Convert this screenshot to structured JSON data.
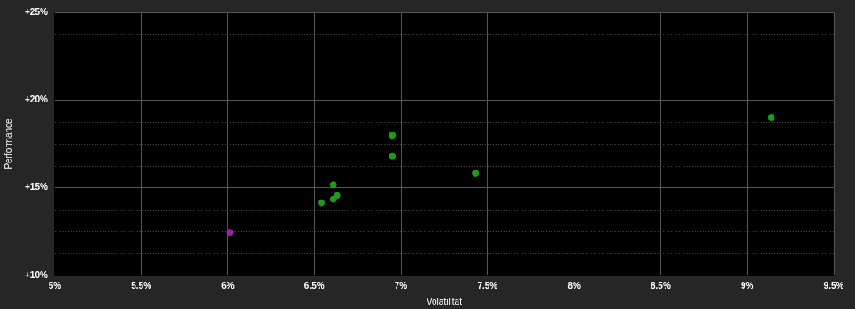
{
  "chart_data": {
    "type": "scatter",
    "x_label": "Volatilität",
    "y_label": "Performance",
    "x": [
      6.01,
      6.54,
      6.61,
      6.63,
      6.61,
      6.95,
      6.95,
      7.43,
      9.14
    ],
    "values": [
      12.46,
      14.15,
      14.35,
      14.56,
      15.17,
      16.81,
      17.99,
      15.84,
      19.01
    ],
    "colors": [
      "#a020a0",
      "#1f9a1f",
      "#1f9a1f",
      "#1f9a1f",
      "#1f9a1f",
      "#1f9a1f",
      "#1f9a1f",
      "#1f9a1f",
      "#1f9a1f"
    ],
    "marker": "circle",
    "xlim": [
      5,
      9.5
    ],
    "xticks": [
      {
        "value": 5,
        "label": "5%"
      },
      {
        "value": 5.5,
        "label": "5.5%"
      },
      {
        "value": 6,
        "label": "6%"
      },
      {
        "value": 6.5,
        "label": "6.5%"
      },
      {
        "value": 7,
        "label": "7%"
      },
      {
        "value": 7.5,
        "label": "7.5%"
      },
      {
        "value": 8,
        "label": "8%"
      },
      {
        "value": 8.5,
        "label": "8.5%"
      },
      {
        "value": 9,
        "label": "9%"
      },
      {
        "value": 9.5,
        "label": "9.5%"
      }
    ],
    "ylim": [
      10,
      25
    ],
    "yticks": [
      {
        "value": 10,
        "label": "+10%"
      },
      {
        "value": 15,
        "label": "+15%"
      },
      {
        "value": 20,
        "label": "+20%"
      },
      {
        "value": 25,
        "label": "+25%"
      }
    ],
    "grid": true
  }
}
